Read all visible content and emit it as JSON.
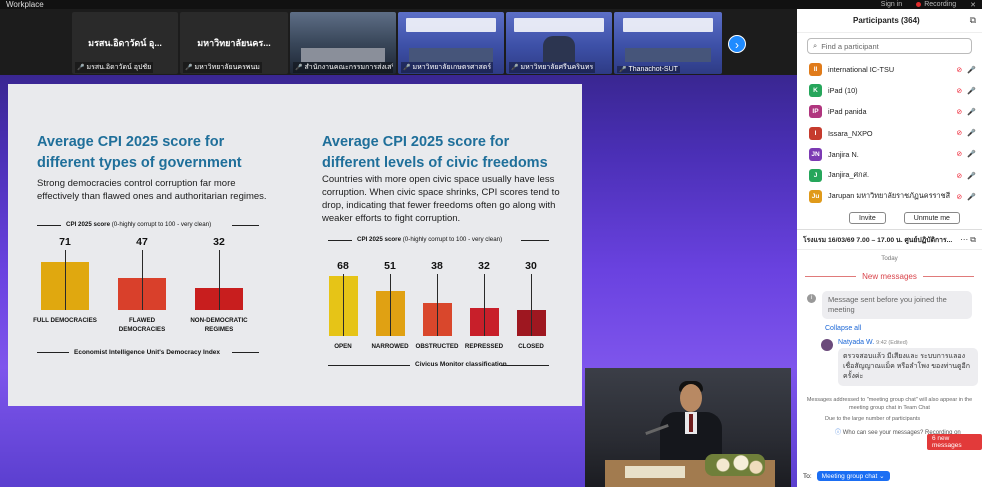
{
  "topbar": {
    "title": "Workplace",
    "sign_in": "Sign in",
    "recording": "Recording"
  },
  "filmstrip": {
    "tiles": [
      {
        "name": "มรสน.อิดาวัดน์ อุ...",
        "label": "มรสน.อิดาวัดน์ อุปชัย"
      },
      {
        "name": "มหาวิทยาลัยนคร...",
        "label": "มหาวิทยาลัยนครพนม"
      },
      {
        "name": "",
        "label": "สำนักงานคณะกรรมการส่งเสริมวิทยาศาสตร์..."
      },
      {
        "name": "",
        "label": "มหาวิทยาลัยเกษตรศาสตร์"
      },
      {
        "name": "",
        "label": "มหาวิทยาลัยศรีนครินทร"
      },
      {
        "name": "",
        "label": "Thanachot-SUT"
      }
    ],
    "next_icon": "›"
  },
  "slide": {
    "left": {
      "title": "Average CPI 2025 score for different types of government",
      "description": "Strong democracies control corruption far more effectively than flawed ones and authoritarian regimes.",
      "axis_title_bold": "CPI 2025 score",
      "axis_title_rest": " (0-highly corrupt to 100 - very clean)",
      "footnote": "Economist Intelligence Unit's Democracy Index"
    },
    "right": {
      "title": "Average CPI 2025 score for different levels of civic freedoms",
      "description": "Countries with more open civic space usually have less corruption. When civic space shrinks, CPI scores tend to drop, indicating that fewer freedoms often go along with weaker efforts to fight corruption.",
      "axis_title_bold": "CPI 2025 score",
      "axis_title_rest": " (0-highly corrupt to 100 - very clean)",
      "footnote": "Civicus Monitor classification"
    }
  },
  "chart_data": [
    {
      "type": "bar",
      "title": "Average CPI 2025 score for different types of government",
      "categories": [
        "FULL DEMOCRACIES",
        "FLAWED DEMOCRACIES",
        "NON-DEMOCRATIC REGIMES"
      ],
      "values": [
        71,
        47,
        32
      ],
      "colors": [
        "#e0a80f",
        "#d9402b",
        "#c81e1e"
      ],
      "ylabel": "CPI 2025 score (0-highly corrupt to 100 - very clean)",
      "xlabel": "Economist Intelligence Unit's Democracy Index",
      "ylim": [
        0,
        100
      ]
    },
    {
      "type": "bar",
      "title": "Average CPI 2025 score for different levels of civic freedoms",
      "categories": [
        "OPEN",
        "NARROWED",
        "OBSTRUCTED",
        "REPRESSED",
        "CLOSED"
      ],
      "values": [
        68,
        51,
        38,
        32,
        30
      ],
      "colors": [
        "#e6c417",
        "#e0a113",
        "#d9472c",
        "#c81f2a",
        "#9e1720"
      ],
      "ylabel": "CPI 2025 score (0-highly corrupt to 100 - very clean)",
      "xlabel": "Civicus Monitor classification",
      "ylim": [
        0,
        100
      ]
    }
  ],
  "participants": {
    "header": "Participants (364)",
    "search_placeholder": "Find a participant",
    "list": [
      {
        "initials": "II",
        "name": "international IC-TSU",
        "color": "#e07b1a"
      },
      {
        "initials": "K",
        "name": "iPad (10)",
        "color": "#26a65b"
      },
      {
        "initials": "IP",
        "name": "iPad panida",
        "color": "#b0357e"
      },
      {
        "initials": "I",
        "name": "Issara_NXPO",
        "color": "#c63b2e"
      },
      {
        "initials": "JN",
        "name": "Janjira N.",
        "color": "#7c3ab3"
      },
      {
        "initials": "J",
        "name": "Janjira_ศกส.",
        "color": "#26a65b"
      },
      {
        "initials": "Ju",
        "name": "Jarupan มหาวิทยาลัยราชภัฏนครราชสีมา",
        "color": "#e09a1a"
      }
    ],
    "invite_label": "Invite",
    "unmute_label": "Unmute me"
  },
  "chat": {
    "title": "โรงแรม 16/03/69 7.00 – 17.00 น. ศูนย์ปฏิบัติการ...",
    "today": "Today",
    "new_messages": "New messages",
    "system_message": "Message sent before you joined the meeting",
    "collapse_all": "Collapse all",
    "sender": "Natyada W.",
    "time": "9:42 (Edited)",
    "message": "ตรวจสอบแล้ว มีเสียงและ ระบบการแลองเชื่อสัญญาณแม็ค หรือลำโพง ของท่านดูอีกครั้งค่ะ",
    "notice": "Messages addressed to \"meeting group chat\" will also appear in the meeting group chat in Team Chat",
    "notice2": "Due to the large number of participants",
    "new_badge": "6 new messages",
    "who_can_see": "Who can see your messages? Recording on",
    "to_label": "To:",
    "to_value": "Meeting group chat"
  }
}
